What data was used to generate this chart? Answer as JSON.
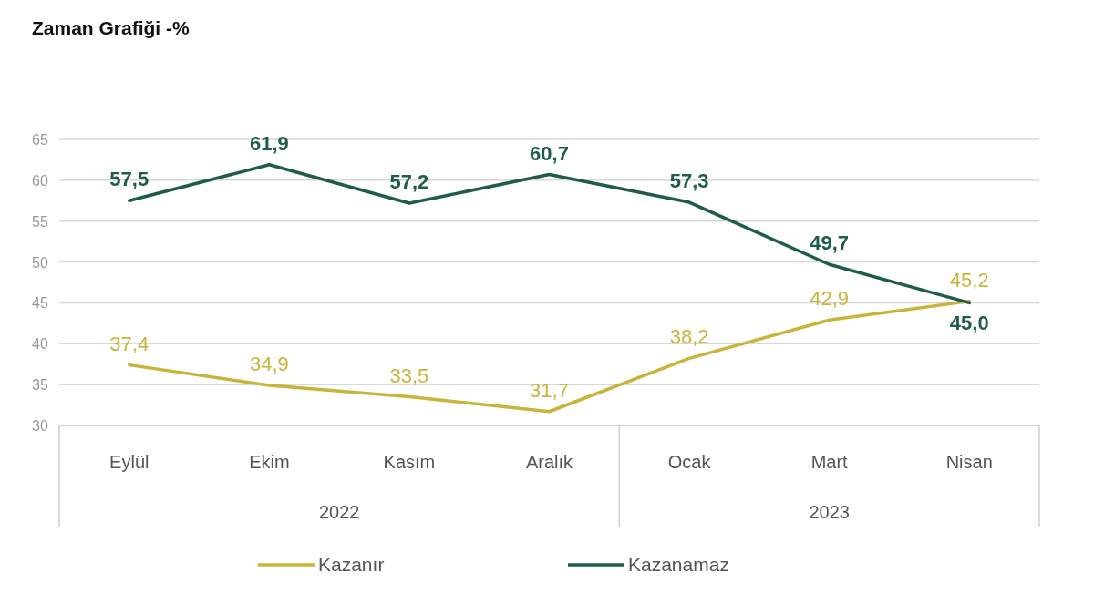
{
  "chart_data": {
    "type": "line",
    "title": "Zaman Grafiği -%",
    "categories": [
      "Eylül",
      "Ekim",
      "Kasım",
      "Aralık",
      "Ocak",
      "Mart",
      "Nisan"
    ],
    "series": [
      {
        "name": "Kazanır",
        "color": "#c9b43a",
        "values": [
          37.4,
          34.9,
          33.5,
          31.7,
          38.2,
          42.9,
          45.2
        ],
        "value_labels": [
          "37,4",
          "34,9",
          "33,5",
          "31,7",
          "38,2",
          "42,9",
          "45,2"
        ]
      },
      {
        "name": "Kazanamaz",
        "color": "#1f5c4b",
        "values": [
          57.5,
          61.9,
          57.2,
          60.7,
          57.3,
          49.7,
          45.0
        ],
        "value_labels": [
          "57,5",
          "61,9",
          "57,2",
          "60,7",
          "57,3",
          "49,7",
          "45,0"
        ]
      }
    ],
    "ylim": [
      30,
      65
    ],
    "yticks": [
      30,
      35,
      40,
      45,
      50,
      55,
      60,
      65
    ],
    "annotations": [
      "2022",
      "2023"
    ],
    "grid": "y",
    "legend": "bottom",
    "marker": "none",
    "line_style": "solid"
  }
}
